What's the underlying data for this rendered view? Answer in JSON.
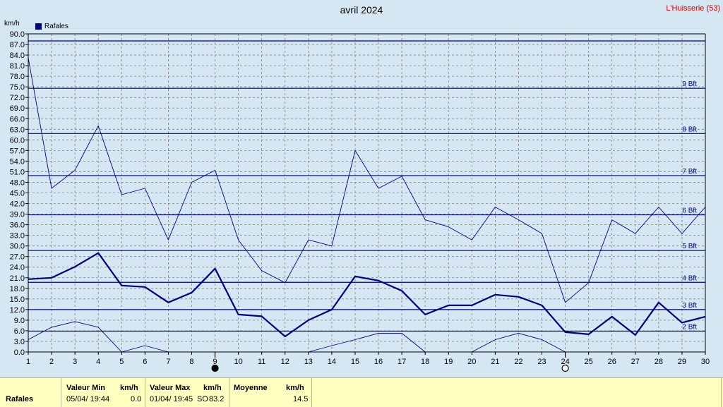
{
  "header": {
    "title": "avril 2024",
    "location": "L'Huisserie (53)",
    "unit": "km/h",
    "legend_label": "Rafales"
  },
  "colors": {
    "background": "#d4e7f2",
    "series": "#000080",
    "grid": "#808080",
    "footer_bg": "#ffffc0",
    "location_text": "#d00000"
  },
  "chart_data": {
    "type": "line",
    "title": "avril 2024",
    "ylabel": "km/h",
    "xlim": [
      1,
      30
    ],
    "ylim": [
      0,
      90
    ],
    "x": [
      1,
      2,
      3,
      4,
      5,
      6,
      7,
      8,
      9,
      10,
      11,
      12,
      13,
      14,
      15,
      16,
      17,
      18,
      19,
      20,
      21,
      22,
      23,
      24,
      25,
      26,
      27,
      28,
      29,
      30
    ],
    "y_ticks": [
      "0.0",
      "3.0",
      "6.0",
      "9.0",
      "12.0",
      "15.0",
      "18.0",
      "21.0",
      "24.0",
      "27.0",
      "30.0",
      "33.0",
      "36.0",
      "39.0",
      "42.0",
      "45.0",
      "48.0",
      "51.0",
      "54.0",
      "57.0",
      "60.0",
      "63.0",
      "66.0",
      "69.0",
      "72.0",
      "75.0",
      "78.0",
      "81.0",
      "84.0",
      "87.0",
      "90.0"
    ],
    "x_ticks": [
      "1",
      "2",
      "3",
      "4",
      "5",
      "6",
      "7",
      "8",
      "9",
      "10",
      "11",
      "12",
      "13",
      "14",
      "15",
      "16",
      "17",
      "18",
      "19",
      "20",
      "21",
      "22",
      "23",
      "24",
      "25",
      "26",
      "27",
      "28",
      "29",
      "30"
    ],
    "series": [
      {
        "name": "Rafales",
        "role": "max",
        "values": [
          83.2,
          46.3,
          51.4,
          64.0,
          44.5,
          46.3,
          31.7,
          48.0,
          51.4,
          31.7,
          23.0,
          19.6,
          31.7,
          30.0,
          57.0,
          46.3,
          49.7,
          37.4,
          35.4,
          31.7,
          41.0,
          37.4,
          33.5,
          14.0,
          19.6,
          37.4,
          33.5,
          41.0,
          33.5,
          41.0
        ]
      },
      {
        "name": "Rafales",
        "role": "mean",
        "values": [
          20.6,
          21.0,
          24.1,
          28.0,
          18.8,
          18.4,
          14.0,
          16.8,
          23.6,
          10.6,
          10.1,
          4.4,
          9.0,
          12.0,
          21.4,
          20.2,
          17.3,
          10.6,
          13.2,
          13.2,
          16.2,
          15.6,
          13.2,
          5.6,
          5.0,
          10.0,
          4.8,
          14.0,
          8.3,
          10.0
        ]
      },
      {
        "name": "Rafales",
        "role": "min",
        "values": [
          3.5,
          7.0,
          8.6,
          7.0,
          0.0,
          1.8,
          0.0,
          null,
          null,
          null,
          null,
          null,
          0.0,
          1.8,
          3.5,
          5.3,
          5.3,
          0.0,
          null,
          0.0,
          3.5,
          5.3,
          3.5,
          0.0,
          null,
          null,
          null,
          null,
          null,
          null
        ]
      }
    ],
    "beaufort_lines": [
      {
        "label": "2 Bft",
        "value": 5.9
      },
      {
        "label": "3 Bft",
        "value": 12.0
      },
      {
        "label": "4 Bft",
        "value": 19.7
      },
      {
        "label": "5 Bft",
        "value": 28.7
      },
      {
        "label": "6 Bft",
        "value": 38.8
      },
      {
        "label": "7 Bft",
        "value": 49.9
      },
      {
        "label": "8 Bft",
        "value": 61.8
      },
      {
        "label": "9 Bft",
        "value": 74.6
      },
      {
        "label": "",
        "value": 88.0
      }
    ],
    "moon_phases": [
      {
        "day": 9,
        "phase": "new"
      },
      {
        "day": 24,
        "phase": "full"
      }
    ],
    "grid": true
  },
  "footer": {
    "row_label": "Rafales",
    "min_header": "Valeur Min",
    "min_unit": "km/h",
    "min_date": "05/04/  19:44",
    "min_value": "0.0",
    "max_header": "Valeur Max",
    "max_unit": "km/h",
    "max_date": "01/04/  19:45",
    "max_dir": "SO",
    "max_value": "83.2",
    "mean_header": "Moyenne",
    "mean_unit": "km/h",
    "mean_value": "14.5"
  }
}
